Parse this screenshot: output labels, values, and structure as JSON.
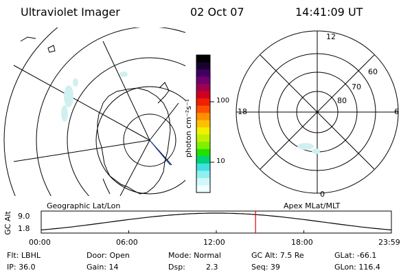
{
  "header": {
    "instrument": "Ultraviolet Imager",
    "date": "02 Oct 07",
    "time": "14:41:09 UT"
  },
  "panels": {
    "left_title": "Geographic Lat/Lon",
    "right_title": "Apex MLat/MLT"
  },
  "colorbar": {
    "label": "photon cm⁻²s⁻¹",
    "ticks": [
      "100",
      "10"
    ],
    "colors": [
      "#000000",
      "#1a0030",
      "#400060",
      "#700070",
      "#a00050",
      "#d00020",
      "#f02000",
      "#ff5000",
      "#ff9000",
      "#ffc000",
      "#f0f000",
      "#c0f000",
      "#80f000",
      "#20e000",
      "#00d080",
      "#40e0e0",
      "#90f0f0",
      "#d0f8f8",
      "#f0ffff"
    ]
  },
  "polar": {
    "mlt_labels": {
      "top": "12",
      "left": "18",
      "right": "6",
      "bottom": "0"
    },
    "lat_labels": [
      "60",
      "70",
      "80"
    ]
  },
  "orbit_plot": {
    "ylabel": "GC Alt",
    "yticks": [
      "9.0",
      "1.8"
    ],
    "xticks": [
      "00:00",
      "06:00",
      "12:00",
      "18:00",
      "23:59"
    ],
    "marker_hours": 14.69,
    "marker_color": "#e00000"
  },
  "info": {
    "flt": "Flt: LBHL",
    "ip": "IP: 36.0",
    "door": "Door: Open",
    "gain": "Gain: 14",
    "mode": "Mode: Normal",
    "dsp_label": "Dsp:",
    "dsp_value": "2.3",
    "gc_alt": "GC Alt: 7.5 Re",
    "seq": "Seq: 39",
    "glat": "GLat: -66.1",
    "glon": "GLon: 116.4"
  }
}
